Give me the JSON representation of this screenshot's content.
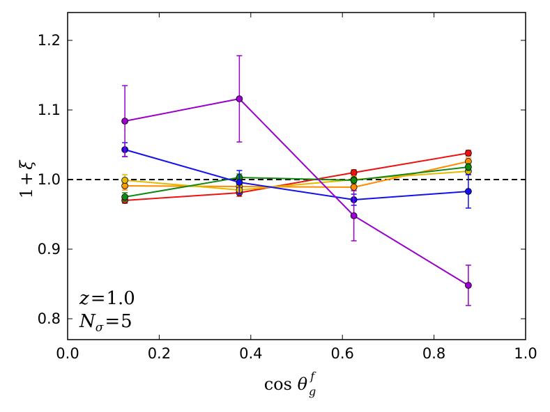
{
  "chart_data": {
    "type": "line",
    "title": "",
    "xlabel": "cos θ_g^f",
    "ylabel": "1+ξ",
    "xlim": [
      0.0,
      1.0
    ],
    "ylim": [
      0.77,
      1.24
    ],
    "x_ticks": [
      0.0,
      0.2,
      0.4,
      0.6,
      0.8,
      1.0
    ],
    "y_ticks": [
      0.8,
      0.9,
      1.0,
      1.1,
      1.2
    ],
    "x_tick_labels": [
      "0.0",
      "0.2",
      "0.4",
      "0.6",
      "0.8",
      "1.0"
    ],
    "y_tick_labels": [
      "0.8",
      "0.9",
      "1.0",
      "1.1",
      "1.2"
    ],
    "reference_line": {
      "y": 1.0,
      "style": "dashed",
      "color": "#000000"
    },
    "annotations": [
      {
        "var": "z",
        "sub": "",
        "eq": "=",
        "value": "1.0"
      },
      {
        "var": "N",
        "sub": "σ",
        "eq": "=",
        "value": "5"
      }
    ],
    "x": [
      0.125,
      0.375,
      0.625,
      0.875
    ],
    "series": [
      {
        "name": "red",
        "color": "#ee1111",
        "values": [
          0.97,
          0.981,
          1.01,
          1.038
        ],
        "errors": [
          0.004,
          0.005,
          0.004,
          0.004
        ]
      },
      {
        "name": "orange",
        "color": "#ff8c00",
        "values": [
          0.991,
          0.99,
          0.989,
          1.026
        ],
        "errors": [
          0.006,
          0.006,
          0.005,
          0.005
        ]
      },
      {
        "name": "gold",
        "color": "#e6b800",
        "values": [
          0.999,
          0.985,
          1.0,
          1.012
        ],
        "errors": [
          0.008,
          0.006,
          0.005,
          0.005
        ]
      },
      {
        "name": "green",
        "color": "#118811",
        "values": [
          0.975,
          1.003,
          0.999,
          1.018
        ],
        "errors": [
          0.006,
          0.005,
          0.004,
          0.005
        ]
      },
      {
        "name": "blue",
        "color": "#1111ee",
        "values": [
          1.043,
          0.996,
          0.971,
          0.983
        ],
        "errors": [
          0.01,
          0.017,
          0.008,
          0.024
        ]
      },
      {
        "name": "purple",
        "color": "#9900cc",
        "values": [
          1.084,
          1.116,
          0.948,
          0.848
        ],
        "errors": [
          0.051,
          0.062,
          0.036,
          0.029
        ]
      }
    ]
  }
}
